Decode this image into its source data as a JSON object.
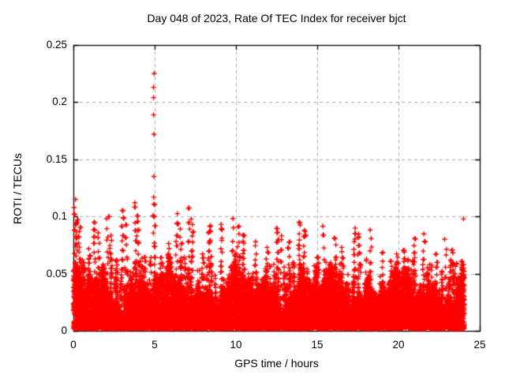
{
  "figure": {
    "background": "#ffffff",
    "frame_color": "#000000",
    "grid_color": "#a8a8a8",
    "grid_style": "dashed"
  },
  "chart_data": {
    "type": "scatter",
    "title": "Day 048 of 2023, Rate Of TEC Index for receiver bjct",
    "xlabel": "GPS time / hours",
    "ylabel": "ROTI / TECUs",
    "xlim": [
      0,
      25
    ],
    "ylim": [
      0,
      0.25
    ],
    "xticks": {
      "values": [
        0,
        5,
        10,
        15,
        20,
        25
      ],
      "labels": [
        "0",
        "5",
        "10",
        "15",
        "20",
        "25"
      ]
    },
    "yticks": {
      "values": [
        0,
        0.05,
        0.1,
        0.15,
        0.2,
        0.25
      ],
      "labels": [
        "0",
        "0.05",
        "0.1",
        "0.15",
        "0.2",
        "0.25"
      ]
    },
    "grid": "dashed gray lines at every major tick, both axes",
    "legend": null,
    "marker": "plus",
    "marker_color": "#ff0000",
    "series_name": "ROTI",
    "x_data_range": [
      0,
      24.1
    ],
    "baseline": {
      "description": "dense saturated band of + markers covering all times 0-24 h; bulk of values between 0.003 and 0.035 TECU with spiky tops varying 0.03-0.06",
      "band_floor": 0.0,
      "band_top_typical": 0.04,
      "n_points": 14000
    },
    "main_spike": {
      "x": 4.95,
      "values": [
        0.225,
        0.213,
        0.204,
        0.189,
        0.172,
        0.135,
        0.117
      ]
    },
    "isolated_points": [
      {
        "x": 24.0,
        "y": 0.098
      }
    ],
    "spikes": [
      {
        "x": 0.1,
        "top": 0.112
      },
      {
        "x": 0.18,
        "top": 0.1
      },
      {
        "x": 0.35,
        "top": 0.09
      },
      {
        "x": 0.6,
        "top": 0.062
      },
      {
        "x": 0.95,
        "top": 0.072
      },
      {
        "x": 1.3,
        "top": 0.094
      },
      {
        "x": 1.55,
        "top": 0.086
      },
      {
        "x": 2.1,
        "top": 0.1
      },
      {
        "x": 2.3,
        "top": 0.083
      },
      {
        "x": 2.65,
        "top": 0.062
      },
      {
        "x": 3.0,
        "top": 0.104
      },
      {
        "x": 3.25,
        "top": 0.091
      },
      {
        "x": 3.8,
        "top": 0.112
      },
      {
        "x": 3.95,
        "top": 0.1
      },
      {
        "x": 4.4,
        "top": 0.065
      },
      {
        "x": 4.95,
        "top": 0.108
      },
      {
        "x": 5.4,
        "top": 0.062
      },
      {
        "x": 5.85,
        "top": 0.075
      },
      {
        "x": 6.35,
        "top": 0.1
      },
      {
        "x": 6.6,
        "top": 0.09
      },
      {
        "x": 7.1,
        "top": 0.105
      },
      {
        "x": 7.3,
        "top": 0.096
      },
      {
        "x": 7.95,
        "top": 0.068
      },
      {
        "x": 8.35,
        "top": 0.091
      },
      {
        "x": 9.1,
        "top": 0.095
      },
      {
        "x": 9.8,
        "top": 0.101
      },
      {
        "x": 10.15,
        "top": 0.09
      },
      {
        "x": 10.45,
        "top": 0.086
      },
      {
        "x": 11.2,
        "top": 0.077
      },
      {
        "x": 11.9,
        "top": 0.071
      },
      {
        "x": 12.55,
        "top": 0.092
      },
      {
        "x": 12.75,
        "top": 0.085
      },
      {
        "x": 13.25,
        "top": 0.076
      },
      {
        "x": 13.9,
        "top": 0.094
      },
      {
        "x": 14.2,
        "top": 0.089
      },
      {
        "x": 15.0,
        "top": 0.064
      },
      {
        "x": 15.4,
        "top": 0.093
      },
      {
        "x": 16.1,
        "top": 0.081
      },
      {
        "x": 16.55,
        "top": 0.072
      },
      {
        "x": 17.3,
        "top": 0.091
      },
      {
        "x": 17.55,
        "top": 0.084
      },
      {
        "x": 18.3,
        "top": 0.087
      },
      {
        "x": 19.0,
        "top": 0.067
      },
      {
        "x": 19.55,
        "top": 0.062
      },
      {
        "x": 20.3,
        "top": 0.071
      },
      {
        "x": 21.0,
        "top": 0.079
      },
      {
        "x": 21.55,
        "top": 0.083
      },
      {
        "x": 22.3,
        "top": 0.066
      },
      {
        "x": 22.9,
        "top": 0.079
      },
      {
        "x": 23.3,
        "top": 0.071
      },
      {
        "x": 23.9,
        "top": 0.062
      }
    ]
  }
}
